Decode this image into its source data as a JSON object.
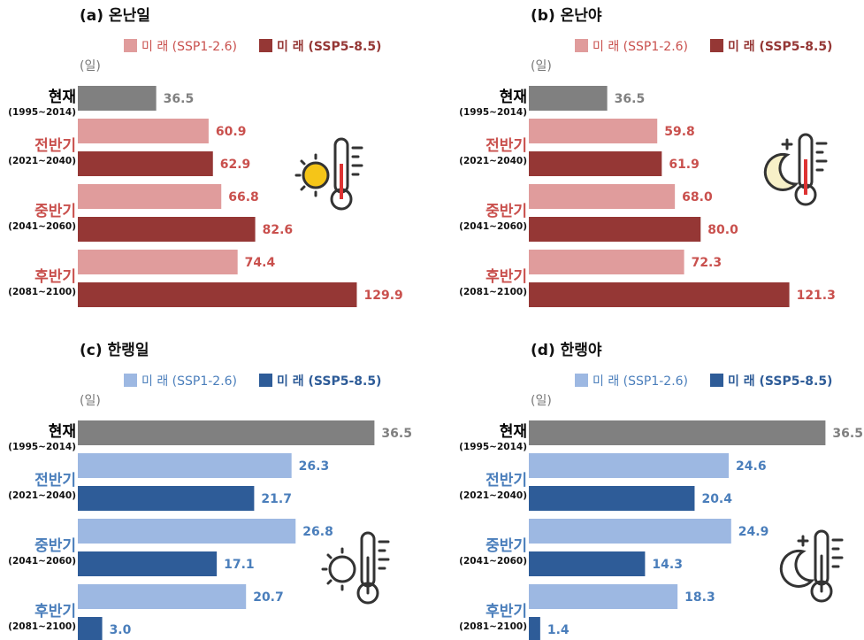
{
  "chart_data": [
    {
      "type": "bar",
      "title": "(a) 온난일",
      "unit_label": "(일)",
      "categories": [
        "현재",
        "전반기",
        "중반기",
        "후반기"
      ],
      "periods": [
        "(1995~2014)",
        "(2021~2040)",
        "(2041~2060)",
        "(2081~2100)"
      ],
      "current_value": 36.5,
      "current_color": "#808080",
      "series": [
        {
          "name": "미 래 (SSP1-2.6)",
          "color": "#e09c9c",
          "values": [
            null,
            60.9,
            66.8,
            74.4
          ]
        },
        {
          "name": "미 래 (SSP5-8.5)",
          "color": "#953735",
          "values": [
            null,
            62.9,
            82.6,
            129.9
          ]
        }
      ],
      "label_color": "#c9504d",
      "category_color": "#c9504d",
      "xlim": [
        0,
        140
      ]
    },
    {
      "type": "bar",
      "title": "(b) 온난야",
      "unit_label": "(일)",
      "categories": [
        "현재",
        "전반기",
        "중반기",
        "후반기"
      ],
      "periods": [
        "(1995~2014)",
        "(2021~2040)",
        "(2041~2060)",
        "(2081~2100)"
      ],
      "current_value": 36.5,
      "current_color": "#808080",
      "series": [
        {
          "name": "미 래 (SSP1-2.6)",
          "color": "#e09c9c",
          "values": [
            null,
            59.8,
            68.0,
            72.3
          ],
          "value_labels": [
            null,
            "59.8",
            "68.0",
            "72.3"
          ]
        },
        {
          "name": "미 래 (SSP5-8.5)",
          "color": "#953735",
          "values": [
            null,
            61.9,
            80.0,
            121.3
          ],
          "value_labels": [
            null,
            "61.9",
            "80.0",
            "121.3"
          ]
        }
      ],
      "label_color": "#c9504d",
      "category_color": "#c9504d",
      "xlim": [
        0,
        140
      ]
    },
    {
      "type": "bar",
      "title": "(c) 한랭일",
      "unit_label": "(일)",
      "categories": [
        "현재",
        "전반기",
        "중반기",
        "후반기"
      ],
      "periods": [
        "(1995~2014)",
        "(2021~2040)",
        "(2041~2060)",
        "(2081~2100)"
      ],
      "current_value": 36.5,
      "current_color": "#808080",
      "series": [
        {
          "name": "미 래 (SSP1-2.6)",
          "color": "#9db8e2",
          "values": [
            null,
            26.3,
            26.8,
            20.7
          ]
        },
        {
          "name": "미 래 (SSP5-8.5)",
          "color": "#2e5c98",
          "values": [
            null,
            21.7,
            17.1,
            3.0
          ],
          "value_labels": [
            null,
            "21.7",
            "17.1",
            "3.0"
          ]
        }
      ],
      "label_color": "#4a7ebb",
      "category_color": "#4a7ebb",
      "xlim": [
        0,
        37
      ]
    },
    {
      "type": "bar",
      "title": "(d) 한랭야",
      "unit_label": "(일)",
      "categories": [
        "현재",
        "전반기",
        "중반기",
        "후반기"
      ],
      "periods": [
        "(1995~2014)",
        "(2021~2040)",
        "(2041~2060)",
        "(2081~2100)"
      ],
      "current_value": 36.5,
      "current_color": "#808080",
      "series": [
        {
          "name": "미 래 (SSP1-2.6)",
          "color": "#9db8e2",
          "values": [
            null,
            24.6,
            24.9,
            18.3
          ]
        },
        {
          "name": "미 래 (SSP5-8.5)",
          "color": "#2e5c98",
          "values": [
            null,
            20.4,
            14.3,
            1.4
          ]
        }
      ],
      "label_color": "#4a7ebb",
      "category_color": "#4a7ebb",
      "xlim": [
        0,
        37
      ]
    }
  ]
}
